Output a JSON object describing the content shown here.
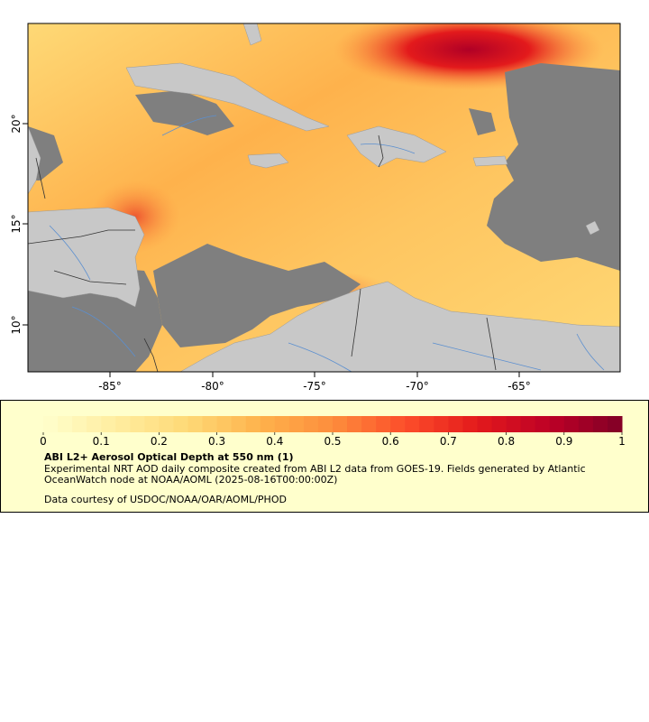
{
  "map": {
    "longitude_ticks": [
      "-85°",
      "-80°",
      "-75°",
      "-70°",
      "-65°"
    ],
    "latitude_ticks": [
      "20°",
      "15°",
      "10°"
    ],
    "colors": {
      "no_data_ocean": "#7f7f7f",
      "land": "#c8c8c8",
      "rivers": "#5b8fd0",
      "borders": "#333333",
      "frame": "#000000"
    }
  },
  "legend": {
    "scale_ticks": [
      "0",
      "0.1",
      "0.2",
      "0.3",
      "0.4",
      "0.5",
      "0.6",
      "0.7",
      "0.8",
      "0.9",
      "1"
    ],
    "scale_min": 0,
    "scale_max": 1,
    "color_stops": [
      "#ffffcc",
      "#ffeda0",
      "#fed976",
      "#feb24c",
      "#fd8d3c",
      "#fc4e2a",
      "#e31a1c",
      "#bd0026",
      "#800026"
    ],
    "title": "ABI L2+ Aerosol Optical Depth at 550 nm (1)",
    "description": "Experimental NRT AOD daily composite created from ABI L2 data from GOES-19. Fields generated by Atlantic OceanWatch node at NOAA/AOML (2025-08-16T00:00:00Z)",
    "credit": "Data courtesy of USDOC/NOAA/OAR/AOML/PHOD"
  }
}
